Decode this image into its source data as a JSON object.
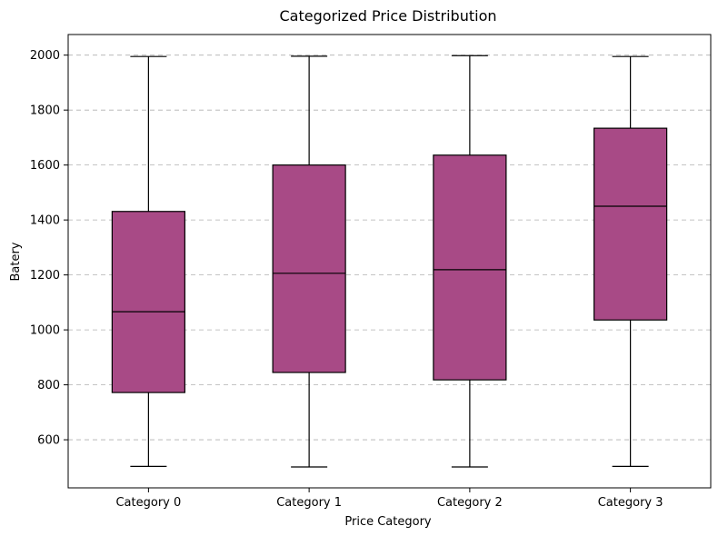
{
  "chart_data": {
    "type": "box",
    "title": "Categorized Price Distribution",
    "xlabel": "Price Category",
    "ylabel": "Batery",
    "categories": [
      "Category 0",
      "Category 1",
      "Category 2",
      "Category 3"
    ],
    "series": [
      {
        "category": "Category 0",
        "min": 503,
        "q1": 772,
        "median": 1066,
        "q3": 1431,
        "max": 1995
      },
      {
        "category": "Category 1",
        "min": 501,
        "q1": 845,
        "median": 1206,
        "q3": 1600,
        "max": 1996
      },
      {
        "category": "Category 2",
        "min": 501,
        "q1": 818,
        "median": 1219,
        "q3": 1636,
        "max": 1998
      },
      {
        "category": "Category 3",
        "min": 503,
        "q1": 1036,
        "median": 1450,
        "q3": 1734,
        "max": 1995
      }
    ],
    "yticks": [
      600,
      800,
      1000,
      1200,
      1400,
      1600,
      1800,
      2000
    ],
    "ylim": [
      425,
      2075
    ],
    "grid": "y-dashed",
    "box_color": "#a84a86"
  }
}
